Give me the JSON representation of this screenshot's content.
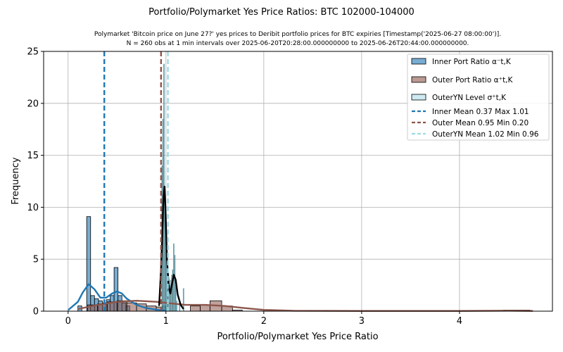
{
  "chart_data": {
    "type": "histogram",
    "title": "Portfolio/Polymarket Yes Price Ratios: BTC 102000-104000",
    "subtitle_line1": "Polymarket 'Bitcoin price on June 27?' yes prices to Deribit portfolio prices for BTC expiries [Timestamp('2025-06-27 08:00:00')].",
    "subtitle_line2": "N = 260 obs at 1 min intervals over 2025-06-20T20:28:00.000000000 to 2025-06-26T20:44:00.000000000.",
    "xlabel": "Portfolio/Polymarket Yes Price Ratio",
    "ylabel": "Frequency",
    "xlim": [
      -0.25,
      4.95
    ],
    "ylim": [
      0,
      25
    ],
    "xticks": [
      0,
      1,
      2,
      3,
      4
    ],
    "yticks": [
      0,
      5,
      10,
      15,
      20,
      25
    ],
    "grid": true,
    "legend_position": "top-right",
    "series": [
      {
        "name": "Inner Port Ratio α⁻t,K",
        "kind": "histogram",
        "color": "#1f77b4",
        "bins": [
          {
            "x0": 0.1,
            "x1": 0.14,
            "count": 0.5
          },
          {
            "x0": 0.19,
            "x1": 0.23,
            "count": 9.1
          },
          {
            "x0": 0.23,
            "x1": 0.27,
            "count": 1.5
          },
          {
            "x0": 0.27,
            "x1": 0.31,
            "count": 1.2
          },
          {
            "x0": 0.31,
            "x1": 0.35,
            "count": 1.0
          },
          {
            "x0": 0.35,
            "x1": 0.39,
            "count": 0.8
          },
          {
            "x0": 0.39,
            "x1": 0.43,
            "count": 1.1
          },
          {
            "x0": 0.43,
            "x1": 0.47,
            "count": 1.5
          },
          {
            "x0": 0.47,
            "x1": 0.51,
            "count": 4.2
          },
          {
            "x0": 0.51,
            "x1": 0.55,
            "count": 1.5
          },
          {
            "x0": 0.55,
            "x1": 0.59,
            "count": 0.8
          },
          {
            "x0": 0.59,
            "x1": 0.63,
            "count": 0.5
          },
          {
            "x0": 0.96,
            "x1": 1.0,
            "count": 0.5
          }
        ],
        "kde": [
          [
            0.0,
            0.1
          ],
          [
            0.1,
            0.9
          ],
          [
            0.15,
            1.8
          ],
          [
            0.21,
            2.6
          ],
          [
            0.27,
            2.1
          ],
          [
            0.33,
            1.3
          ],
          [
            0.39,
            1.3
          ],
          [
            0.45,
            1.7
          ],
          [
            0.5,
            1.9
          ],
          [
            0.55,
            1.7
          ],
          [
            0.6,
            1.2
          ],
          [
            0.7,
            0.6
          ],
          [
            0.8,
            0.3
          ],
          [
            0.9,
            0.15
          ],
          [
            1.0,
            0.05
          ]
        ],
        "mean_line": {
          "label": "Inner Mean 0.37 Max 1.01",
          "x": 0.37
        }
      },
      {
        "name": "Outer Port Ratio α⁺t,K",
        "kind": "histogram",
        "color": "#8c564b",
        "bins": [
          {
            "x0": 0.2,
            "x1": 0.3,
            "count": 0.6
          },
          {
            "x0": 0.3,
            "x1": 0.4,
            "count": 0.7
          },
          {
            "x0": 0.4,
            "x1": 0.5,
            "count": 0.9
          },
          {
            "x0": 0.5,
            "x1": 0.6,
            "count": 1.0
          },
          {
            "x0": 0.6,
            "x1": 0.7,
            "count": 0.8
          },
          {
            "x0": 0.7,
            "x1": 0.8,
            "count": 0.7
          },
          {
            "x0": 0.8,
            "x1": 0.9,
            "count": 0.5
          },
          {
            "x0": 0.9,
            "x1": 1.0,
            "count": 0.4
          },
          {
            "x0": 1.25,
            "x1": 1.35,
            "count": 0.5
          },
          {
            "x0": 1.35,
            "x1": 1.45,
            "count": 0.6
          },
          {
            "x0": 1.45,
            "x1": 1.57,
            "count": 1.0
          },
          {
            "x0": 1.57,
            "x1": 1.68,
            "count": 0.5
          },
          {
            "x0": 1.68,
            "x1": 1.78,
            "count": 0.1
          },
          {
            "x0": 4.45,
            "x1": 4.72,
            "count": 0.1
          }
        ],
        "kde": [
          [
            0.1,
            0.2
          ],
          [
            0.3,
            0.6
          ],
          [
            0.5,
            0.9
          ],
          [
            0.7,
            1.0
          ],
          [
            0.9,
            0.9
          ],
          [
            1.0,
            0.8
          ],
          [
            1.2,
            0.6
          ],
          [
            1.4,
            0.6
          ],
          [
            1.6,
            0.5
          ],
          [
            1.8,
            0.3
          ],
          [
            2.0,
            0.12
          ],
          [
            2.3,
            0.04
          ],
          [
            3.0,
            0.02
          ],
          [
            4.0,
            0.02
          ],
          [
            4.5,
            0.05
          ],
          [
            4.75,
            0.02
          ]
        ],
        "mean_line": {
          "label": "Outer Mean 0.95 Min 0.20",
          "x": 0.95
        }
      },
      {
        "name": "OuterYN Level σ⁺t,K",
        "kind": "histogram",
        "color": "#17becf",
        "bins": [
          {
            "x0": 0.955,
            "x1": 0.965,
            "count": 14.0
          },
          {
            "x0": 0.965,
            "x1": 0.975,
            "count": 18.5
          },
          {
            "x0": 0.975,
            "x1": 0.985,
            "count": 23.8
          },
          {
            "x0": 0.985,
            "x1": 0.995,
            "count": 11.0
          },
          {
            "x0": 0.995,
            "x1": 1.005,
            "count": 8.0
          },
          {
            "x0": 1.005,
            "x1": 1.015,
            "count": 6.0
          },
          {
            "x0": 1.015,
            "x1": 1.025,
            "count": 4.0
          },
          {
            "x0": 1.025,
            "x1": 1.035,
            "count": 3.0
          },
          {
            "x0": 1.035,
            "x1": 1.045,
            "count": 2.5
          },
          {
            "x0": 1.045,
            "x1": 1.055,
            "count": 3.0
          },
          {
            "x0": 1.055,
            "x1": 1.065,
            "count": 3.5
          },
          {
            "x0": 1.065,
            "x1": 1.075,
            "count": 4.0
          },
          {
            "x0": 1.075,
            "x1": 1.085,
            "count": 6.5
          },
          {
            "x0": 1.085,
            "x1": 1.095,
            "count": 5.4
          },
          {
            "x0": 1.095,
            "x1": 1.105,
            "count": 2.5
          },
          {
            "x0": 1.105,
            "x1": 1.115,
            "count": 1.0
          },
          {
            "x0": 1.135,
            "x1": 1.145,
            "count": 0.8
          },
          {
            "x0": 1.175,
            "x1": 1.185,
            "count": 2.2
          }
        ],
        "kde": [
          [
            0.93,
            0.5
          ],
          [
            0.95,
            4.0
          ],
          [
            0.965,
            8.0
          ],
          [
            0.975,
            11.0
          ],
          [
            0.985,
            12.0
          ],
          [
            0.995,
            10.0
          ],
          [
            1.01,
            5.0
          ],
          [
            1.03,
            2.3
          ],
          [
            1.045,
            1.7
          ],
          [
            1.06,
            2.5
          ],
          [
            1.08,
            3.5
          ],
          [
            1.1,
            3.0
          ],
          [
            1.12,
            1.6
          ],
          [
            1.15,
            0.6
          ],
          [
            1.18,
            0.2
          ]
        ],
        "mean_line": {
          "label": "OuterYN Mean 1.02 Min 0.96",
          "x": 1.02
        }
      }
    ],
    "colors": {
      "inner": "#1f77b4",
      "outer": "#8c564b",
      "outeryn_fill": "#cde9f1",
      "outeryn_line": "#87cde6",
      "outeryn_mean": "#9edae5",
      "kde_black": "#000000",
      "grid": "#b0b0b0"
    }
  }
}
